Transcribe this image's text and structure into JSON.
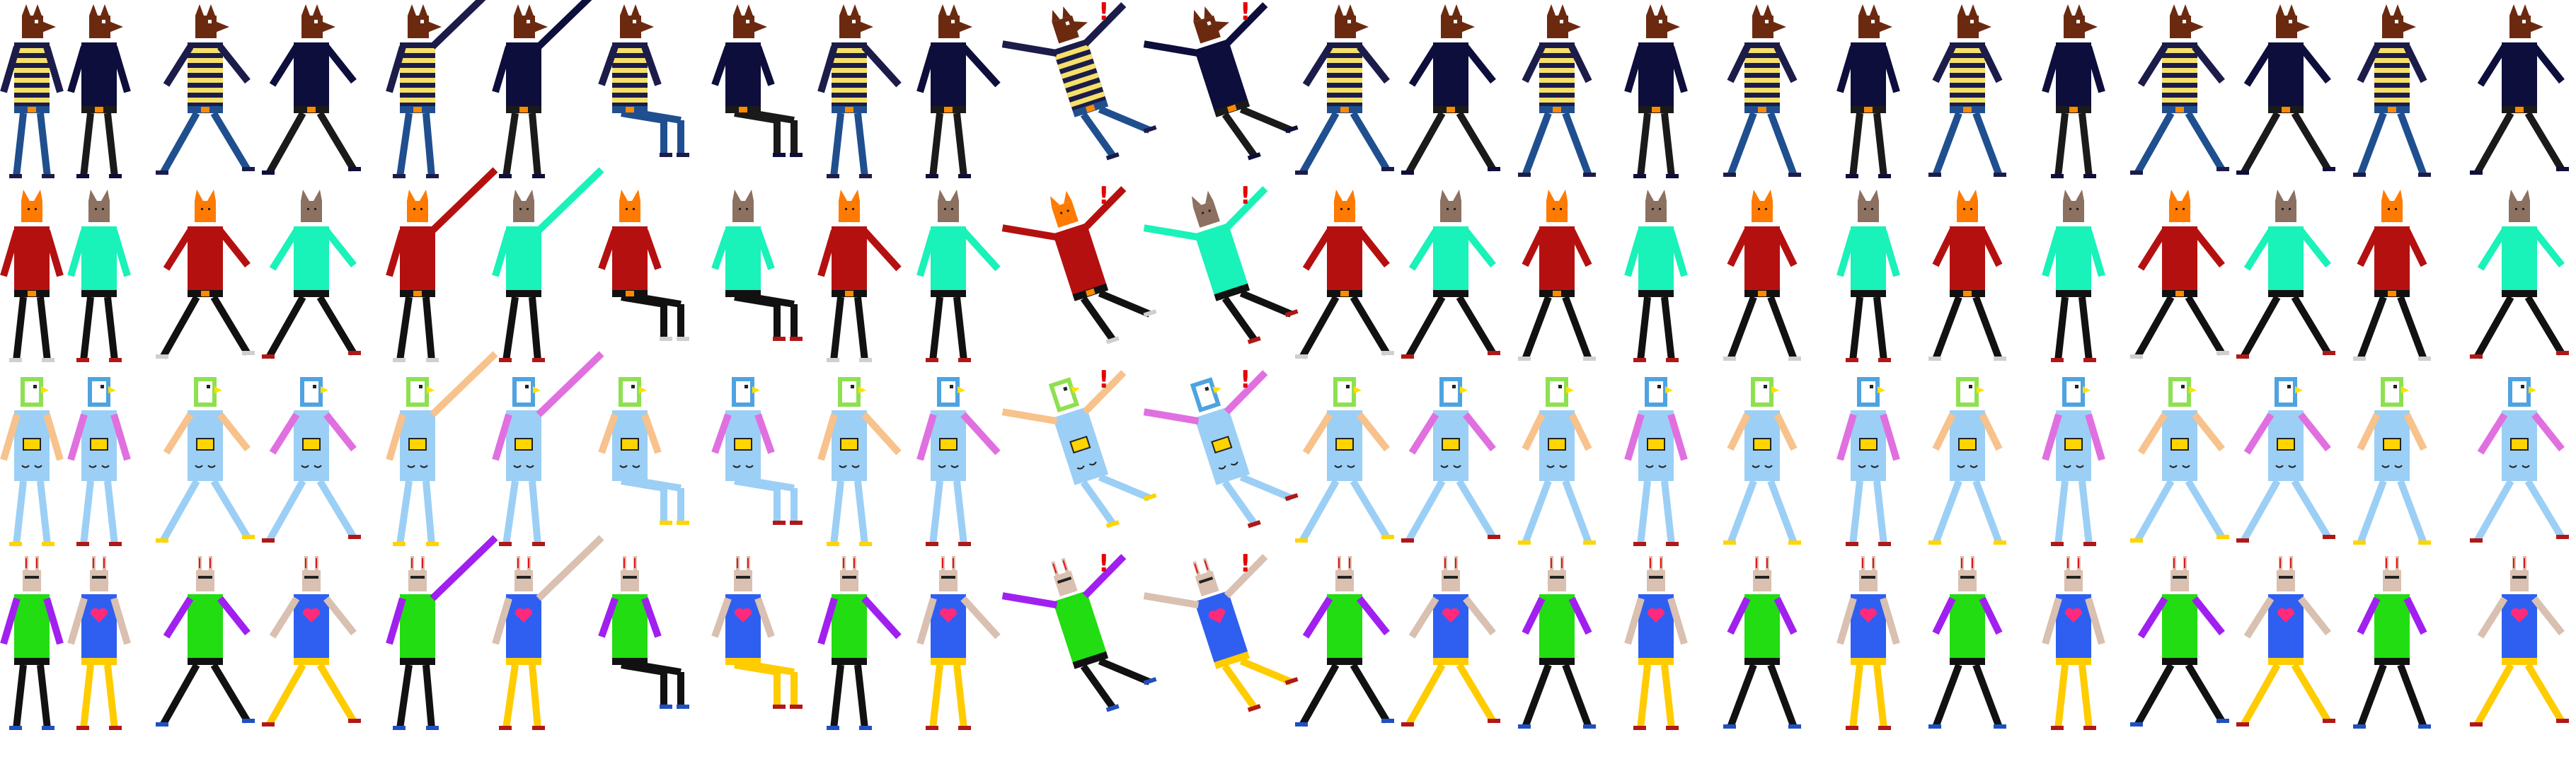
{
  "sheet": {
    "background": "#ffffff",
    "exclaim_glyph": "!",
    "exclaim_color": "#e60000",
    "poses": [
      {
        "name": "idle-a",
        "pair": "a"
      },
      {
        "name": "idle-b",
        "pair": "b"
      },
      {
        "name": "walk-a",
        "pair": "a"
      },
      {
        "name": "walk-b",
        "pair": "b"
      },
      {
        "name": "gesture-a",
        "pair": "a"
      },
      {
        "name": "gesture-b",
        "pair": "b"
      },
      {
        "name": "sit-a",
        "pair": "a"
      },
      {
        "name": "sit-b",
        "pair": "b"
      },
      {
        "name": "point-a",
        "pair": "a"
      },
      {
        "name": "point-b",
        "pair": "b"
      },
      {
        "name": "fall-a",
        "pair": "a"
      },
      {
        "name": "fall-b",
        "pair": "b"
      },
      {
        "name": "walk-a",
        "pair": "a"
      },
      {
        "name": "walk-b",
        "pair": "b"
      },
      {
        "name": "hips-a",
        "pair": "a"
      },
      {
        "name": "idle-b",
        "pair": "b"
      },
      {
        "name": "hips-a",
        "pair": "a"
      },
      {
        "name": "idle-b",
        "pair": "b"
      },
      {
        "name": "hips-a",
        "pair": "a"
      },
      {
        "name": "idle-b",
        "pair": "b"
      },
      {
        "name": "walk-a",
        "pair": "a"
      },
      {
        "name": "walk-b",
        "pair": "b"
      },
      {
        "name": "hips-a",
        "pair": "a"
      },
      {
        "name": "walk-b",
        "pair": "b"
      }
    ],
    "rows": [
      {
        "name": "dogs",
        "characters": {
          "a": {
            "head": "dog",
            "head_color": "#6b2a10",
            "top": "stripes",
            "top_color": "#1c1c4a",
            "stripe_color": "#f5e06a",
            "arm_color": "#1c1c4a",
            "pants_color": "#1f4f8f",
            "belt_color": "#ff8a00",
            "shoe_color": "#1c1c4a",
            "skin": "#6b2a10"
          },
          "b": {
            "head": "dog",
            "head_color": "#6b2a10",
            "top": "plain",
            "top_color": "#0e0e3c",
            "stripe_color": "#0e0e3c",
            "arm_color": "#0e0e3c",
            "pants_color": "#1a1a1a",
            "belt_color": "#ff8a00",
            "shoe_color": "#0e0e3c",
            "skin": "#6b2a10"
          }
        }
      },
      {
        "name": "cats",
        "characters": {
          "a": {
            "head": "cat",
            "head_color": "#ff7a00",
            "top": "plain",
            "top_color": "#b51010",
            "stripe_color": "#b51010",
            "arm_color": "#b51010",
            "pants_color": "#111111",
            "belt_color": "#ff8a00",
            "shoe_color": "#cfcfcf",
            "skin": "#ff7a00"
          },
          "b": {
            "head": "cat",
            "head_color": "#8c7060",
            "top": "plain",
            "top_color": "#19f2b8",
            "stripe_color": "#19f2b8",
            "arm_color": "#19f2b8",
            "pants_color": "#111111",
            "belt_color": "#111111",
            "shoe_color": "#b01818",
            "skin": "#8c7060"
          }
        }
      },
      {
        "name": "birds",
        "characters": {
          "a": {
            "head": "bird",
            "head_color": "#8ee050",
            "top": "overalls",
            "top_color": "#9ccff5",
            "stripe_color": "#f7c28c",
            "arm_color": "#f7c28c",
            "pants_color": "#9ccff5",
            "belt_color": "#ffd400",
            "shoe_color": "#ffd400",
            "skin": "#f7c28c"
          },
          "b": {
            "head": "bird",
            "head_color": "#4ea3e0",
            "top": "overalls",
            "top_color": "#9ccff5",
            "stripe_color": "#e070e0",
            "arm_color": "#e070e0",
            "pants_color": "#9ccff5",
            "belt_color": "#ffd400",
            "shoe_color": "#b01818",
            "skin": "#4ea3e0"
          }
        }
      },
      {
        "name": "rabbits",
        "characters": {
          "a": {
            "head": "rabbit",
            "head_color": "#d9c0b0",
            "top": "plain",
            "top_color": "#22dd11",
            "stripe_color": "#22dd11",
            "arm_color": "#a020f0",
            "pants_color": "#111111",
            "belt_color": "#111111",
            "shoe_color": "#2050c0",
            "skin": "#d9c0b0"
          },
          "b": {
            "head": "rabbit",
            "head_color": "#d9c0b0",
            "top": "heart",
            "top_color": "#2f5ff0",
            "stripe_color": "#ff2a7a",
            "arm_color": "#d9c0b0",
            "pants_color": "#ffcc00",
            "belt_color": "#ffcc00",
            "shoe_color": "#b01818",
            "skin": "#d9c0b0"
          }
        }
      }
    ]
  }
}
